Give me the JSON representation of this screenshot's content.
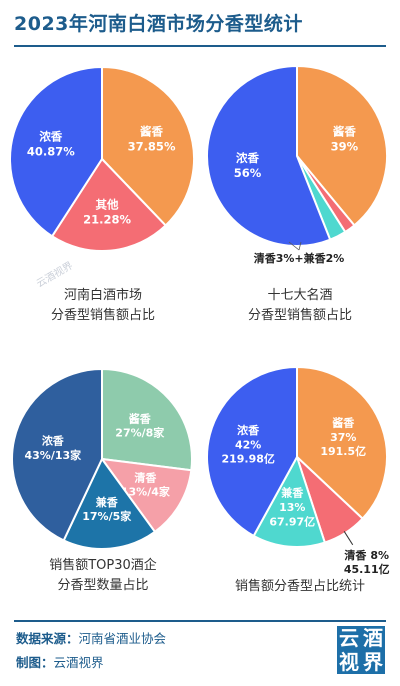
{
  "header": {
    "title": "2023年河南白酒市场分香型统计"
  },
  "chart_data": [
    {
      "type": "pie",
      "caption": [
        "河南白酒市场",
        "分香型销售额占比"
      ],
      "slices": [
        {
          "name": "酱香",
          "value": 37.85,
          "label": "37.85%",
          "color": "#f4994f"
        },
        {
          "name": "其他",
          "value": 21.28,
          "label": "21.28%",
          "color": "#f46d74"
        },
        {
          "name": "浓香",
          "value": 40.87,
          "label": "40.87%",
          "color": "#3d5ef0"
        }
      ]
    },
    {
      "type": "pie",
      "caption": [
        "十七大名酒",
        "分香型销售额占比"
      ],
      "outside_label": "清香3%+兼香2%",
      "slices": [
        {
          "name": "酱香",
          "value": 39,
          "label": "39%",
          "color": "#f4994f"
        },
        {
          "name": "兼香",
          "value": 2,
          "label": "",
          "color": "#f46d74"
        },
        {
          "name": "清香",
          "value": 3,
          "label": "",
          "color": "#4fd8cf"
        },
        {
          "name": "浓香",
          "value": 56,
          "label": "56%",
          "color": "#3d5ef0"
        }
      ]
    },
    {
      "type": "pie",
      "caption": [
        "销售额TOP30酒企",
        "分香型数量占比"
      ],
      "slices": [
        {
          "name": "酱香",
          "value": 27,
          "label": "27%/8家",
          "color": "#8ecbac"
        },
        {
          "name": "清香",
          "value": 13,
          "label": "13%/4家",
          "color": "#f5a0a8"
        },
        {
          "name": "兼香",
          "value": 17,
          "label": "17%/5家",
          "color": "#1d74a8"
        },
        {
          "name": "浓香",
          "value": 43,
          "label": "43%/13家",
          "color": "#2f5f9e"
        }
      ]
    },
    {
      "type": "pie",
      "caption": [
        "销售额分香型占比统计"
      ],
      "slices": [
        {
          "name": "酱香",
          "value": 37,
          "label": "37%",
          "amount": "191.5亿",
          "color": "#f4994f"
        },
        {
          "name": "清香",
          "value": 8,
          "label": "8%",
          "amount": "45.11亿",
          "color": "#f46d74",
          "outside": true
        },
        {
          "name": "兼香",
          "value": 13,
          "label": "13%",
          "amount": "67.97亿",
          "color": "#4fd8cf"
        },
        {
          "name": "浓香",
          "value": 42,
          "label": "42%",
          "amount": "219.98亿",
          "color": "#3d5ef0"
        }
      ]
    }
  ],
  "footer": {
    "source_label": "数据来源：",
    "source_value": "河南省酒业协会",
    "maker_label": "制图：",
    "maker_value": "云酒视界",
    "logo_chars": [
      "云",
      "酒",
      "视",
      "界"
    ],
    "watermark": "云酒视界"
  }
}
